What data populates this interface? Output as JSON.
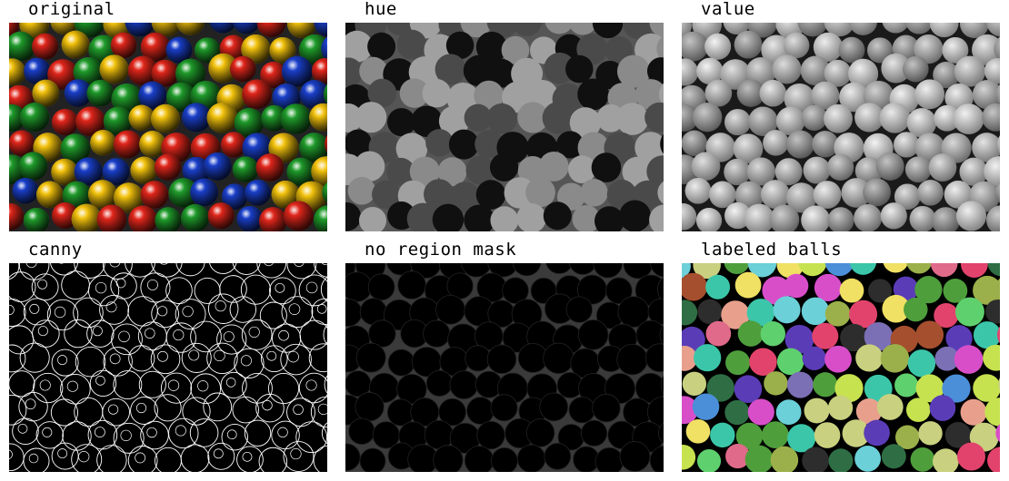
{
  "panels": [
    {
      "title": "original"
    },
    {
      "title": "hue"
    },
    {
      "title": "value"
    },
    {
      "title": "canny"
    },
    {
      "title": "no region mask"
    },
    {
      "title": "labeled balls"
    }
  ],
  "palette": {
    "original": [
      "#e0261b",
      "#1a3fc9",
      "#f2c20d",
      "#1f9a2a"
    ],
    "labels": [
      "#4f9e3c",
      "#7b6fb5",
      "#e8a08d",
      "#3bc6a9",
      "#d84ec9",
      "#c6e24f",
      "#2f6e44",
      "#9bb04a",
      "#e06a8a",
      "#6bd0d8",
      "#5a3cb7",
      "#c9d07f",
      "#e2436c",
      "#5fd06e",
      "#a54f2e",
      "#4b8fd9",
      "#f0e063",
      "#2d2d2d"
    ]
  }
}
